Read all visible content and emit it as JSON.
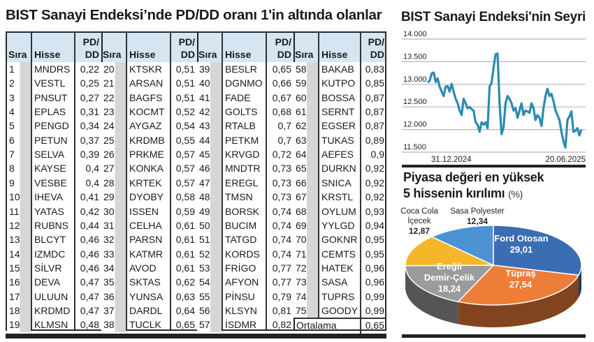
{
  "table_title": "BIST Sanayi Endeksi’nde PD/DD oranı 1'in altında olanlar",
  "table": {
    "headers": {
      "sira": "Sıra",
      "hisse": "Hisse",
      "pd_line1": "PD/",
      "pd_line2": "DD"
    },
    "groups": [
      [
        [
          "1",
          "MNDRS",
          "0,22"
        ],
        [
          "2",
          "VESTL",
          "0,25"
        ],
        [
          "3",
          "PNSUT",
          "0,27"
        ],
        [
          "4",
          "EPLAS",
          "0,31"
        ],
        [
          "5",
          "PENGD",
          "0,34"
        ],
        [
          "6",
          "PETUN",
          "0,37"
        ],
        [
          "7",
          "SELVA",
          "0,39"
        ],
        [
          "8",
          "KAYSE",
          "0,4"
        ],
        [
          "9",
          "VESBE",
          "0,4"
        ],
        [
          "10",
          "IHEVA",
          "0,41"
        ],
        [
          "11",
          "YATAS",
          "0,42"
        ],
        [
          "12",
          "RUBNS",
          "0,44"
        ],
        [
          "13",
          "BLCYT",
          "0,46"
        ],
        [
          "14",
          "IZMDC",
          "0,46"
        ],
        [
          "15",
          "SİLVR",
          "0,46"
        ],
        [
          "16",
          "DEVA",
          "0,47"
        ],
        [
          "17",
          "ULUUN",
          "0,47"
        ],
        [
          "18",
          "KRDMD",
          "0,47"
        ],
        [
          "19",
          "KLMSN",
          "0,48"
        ]
      ],
      [
        [
          "20",
          "KTSKR",
          "0,51"
        ],
        [
          "21",
          "ARSAN",
          "0,51"
        ],
        [
          "22",
          "BAGFS",
          "0,51"
        ],
        [
          "23",
          "KOCMT",
          "0,52"
        ],
        [
          "24",
          "AYGAZ",
          "0,54"
        ],
        [
          "25",
          "KRDMB",
          "0,55"
        ],
        [
          "26",
          "PRKME",
          "0,57"
        ],
        [
          "27",
          "KONKA",
          "0,57"
        ],
        [
          "28",
          "KRTEK",
          "0,57"
        ],
        [
          "29",
          "DYOBY",
          "0,58"
        ],
        [
          "30",
          "ISSEN",
          "0,59"
        ],
        [
          "31",
          "CELHA",
          "0,61"
        ],
        [
          "32",
          "PARSN",
          "0,61"
        ],
        [
          "33",
          "KATMR",
          "0,61"
        ],
        [
          "34",
          "AVOD",
          "0,61"
        ],
        [
          "35",
          "SKTAS",
          "0,62"
        ],
        [
          "36",
          "YUNSA",
          "0,63"
        ],
        [
          "37",
          "DARDL",
          "0,64"
        ],
        [
          "38",
          "TUCLK",
          "0,65"
        ]
      ],
      [
        [
          "39",
          "BESLR",
          "0,65"
        ],
        [
          "40",
          "DGNMO",
          "0,66"
        ],
        [
          "41",
          "FADE",
          "0,67"
        ],
        [
          "42",
          "GOLTS",
          "0,68"
        ],
        [
          "43",
          "RTALB",
          "0,7"
        ],
        [
          "44",
          "PETKM",
          "0,7"
        ],
        [
          "45",
          "KRVGD",
          "0,72"
        ],
        [
          "46",
          "MNDTR",
          "0,73"
        ],
        [
          "47",
          "EREGL",
          "0,73"
        ],
        [
          "48",
          "TMSN",
          "0,73"
        ],
        [
          "49",
          "BORSK",
          "0,74"
        ],
        [
          "50",
          "BUCIM",
          "0,74"
        ],
        [
          "51",
          "TATGD",
          "0,74"
        ],
        [
          "52",
          "KORDS",
          "0,74"
        ],
        [
          "53",
          "FRİGO",
          "0,77"
        ],
        [
          "54",
          "AFYON",
          "0,77"
        ],
        [
          "55",
          "PİNSU",
          "0,79"
        ],
        [
          "56",
          "KLSYN",
          "0,81"
        ],
        [
          "57",
          "İSDMR",
          "0,82"
        ]
      ],
      [
        [
          "58",
          "BAKAB",
          "0,83"
        ],
        [
          "59",
          "KUTPO",
          "0,85"
        ],
        [
          "60",
          "BOSSA",
          "0,87"
        ],
        [
          "61",
          "SERNT",
          "0,87"
        ],
        [
          "62",
          "EGSER",
          "0,87"
        ],
        [
          "63",
          "TUKAS",
          "0,89"
        ],
        [
          "64",
          "AEFES",
          "0,9"
        ],
        [
          "65",
          "DURKN",
          "0,92"
        ],
        [
          "66",
          "SNICA",
          "0,92"
        ],
        [
          "67",
          "KRSTL",
          "0,92"
        ],
        [
          "68",
          "OYLUM",
          "0,93"
        ],
        [
          "69",
          "YYLGD",
          "0,94"
        ],
        [
          "70",
          "GOKNR",
          "0,95"
        ],
        [
          "71",
          "CEMTS",
          "0,95"
        ],
        [
          "72",
          "HATEK",
          "0,96"
        ],
        [
          "73",
          "SASA",
          "0,96"
        ],
        [
          "74",
          "TUPRS",
          "0,99"
        ],
        [
          "75",
          "GOODY",
          "0,99"
        ]
      ]
    ],
    "average": {
      "label": "Ortalama",
      "value": "0,65"
    }
  },
  "chart_data": [
    {
      "type": "line",
      "title": "BIST Sanayi Endeksi'nin Seyri",
      "x_labels": [
        "31.12.2024",
        "20.06.2025"
      ],
      "y_ticks": [
        "14.000",
        "13.500",
        "13.000",
        "12.500",
        "12.000",
        "11.500"
      ],
      "ylim": [
        11500,
        14000
      ],
      "grid": true,
      "color": "#2b8bb0",
      "values": [
        13040,
        13080,
        13240,
        13260,
        13050,
        13130,
        12950,
        12840,
        12740,
        12950,
        12960,
        12840,
        13010,
        12840,
        12680,
        12580,
        12420,
        12320,
        12680,
        12580,
        12470,
        12500,
        12450,
        12420,
        12160,
        12110,
        11950,
        12160,
        12110,
        12160,
        12030,
        12950,
        13030,
        13370,
        13660,
        13680,
        12580,
        11900,
        12050,
        12580,
        12740,
        12680,
        12580,
        12420,
        12470,
        12260,
        12420,
        12580,
        12320,
        12420,
        12400,
        12370,
        12580,
        12470,
        12210,
        12320,
        12260,
        12080,
        12470,
        12740,
        12900,
        12740,
        12790,
        12630,
        12420,
        12320,
        12210,
        11950,
        11740,
        11600,
        12210,
        12290,
        12400,
        11950,
        11970,
        12030,
        11870,
        12000
      ]
    },
    {
      "type": "pie",
      "title_line1": "Piyasa değeri en yüksek",
      "title_line2": "5 hissenin kırılımı",
      "unit": "(%)",
      "slices": [
        {
          "label": [
            "Ford Otosan"
          ],
          "value": 29.01,
          "display": "29,01",
          "color": "#3a6db3"
        },
        {
          "label": [
            "Tüpraş"
          ],
          "value": 27.54,
          "display": "27,54",
          "color": "#ee7d37"
        },
        {
          "label": [
            "Ereğli",
            "Demir-Çelik"
          ],
          "value": 18.24,
          "display": "18,24",
          "color": "#9b9b9b"
        },
        {
          "label": [
            "Coca Cola",
            "İçecek"
          ],
          "value": 12.87,
          "display": "12,87",
          "color": "#f6b62a"
        },
        {
          "label": [
            "Sasa Polyester"
          ],
          "value": 12.34,
          "display": "12,34",
          "color": "#4b93d3"
        }
      ]
    }
  ]
}
